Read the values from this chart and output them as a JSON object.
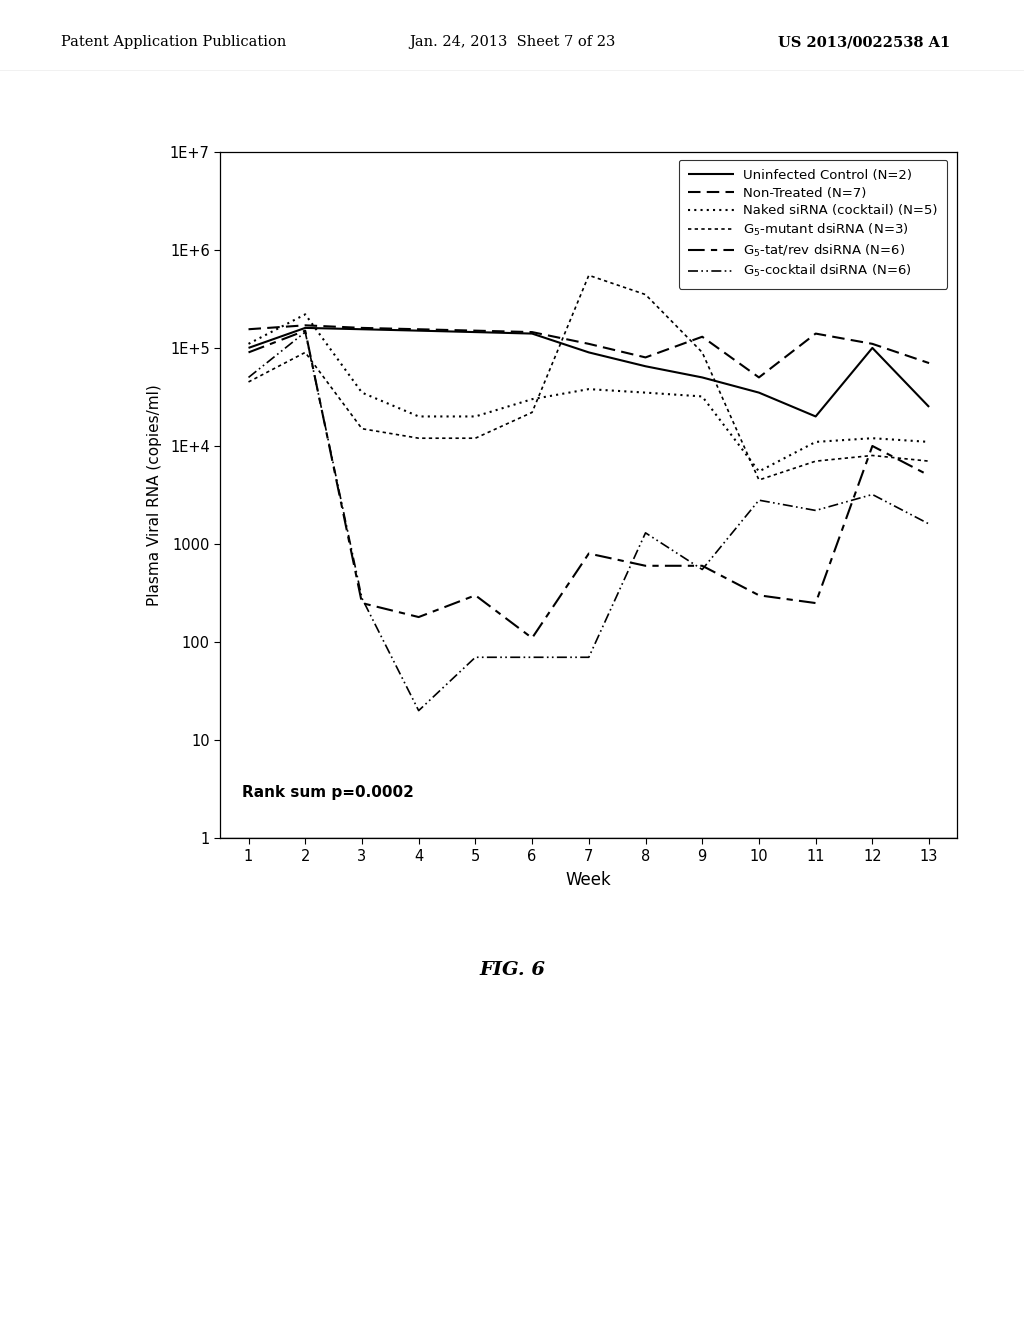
{
  "weeks": [
    1,
    2,
    3,
    4,
    5,
    6,
    7,
    8,
    9,
    10,
    11,
    12,
    13
  ],
  "series": {
    "uninfected": {
      "label": "Uninfected Control (N=2)",
      "values": [
        100000.0,
        160000.0,
        155000.0,
        150000.0,
        145000.0,
        140000.0,
        90000.0,
        65000.0,
        50000.0,
        35000.0,
        20000.0,
        100000.0,
        25000.0
      ]
    },
    "non_treated": {
      "label": "Non-Treated (N=7)",
      "values": [
        155000.0,
        170000.0,
        160000.0,
        155000.0,
        150000.0,
        145000.0,
        110000.0,
        80000.0,
        130000.0,
        50000.0,
        140000.0,
        110000.0,
        70000.0
      ]
    },
    "naked_sirna": {
      "label": "Naked siRNA (cocktail) (N=5)",
      "values": [
        110000.0,
        220000.0,
        35000.0,
        20000.0,
        20000.0,
        30000.0,
        38000.0,
        35000.0,
        32000.0,
        5500.0,
        11000.0,
        12000.0,
        11000.0
      ]
    },
    "g5_mutant": {
      "label": "G$_5$-mutant dsiRNA (N=3)",
      "values": [
        45000.0,
        90000.0,
        15000.0,
        12000.0,
        12000.0,
        22000.0,
        550000.0,
        350000.0,
        90000.0,
        4500.0,
        7000.0,
        8000.0,
        7000.0
      ]
    },
    "g5_tatrev": {
      "label": "G$_5$-tat/rev dsiRNA (N=6)",
      "values": [
        90000.0,
        150000.0,
        250.0,
        180.0,
        300.0,
        110.0,
        800.0,
        600.0,
        600.0,
        300.0,
        250.0,
        10000.0,
        5000.0
      ]
    },
    "g5_cocktail": {
      "label": "G$_5$-cocktail dsiRNA (N=6)",
      "values": [
        50000.0,
        145000.0,
        280.0,
        20.0,
        70.0,
        70.0,
        70.0,
        1300.0,
        550.0,
        2800.0,
        2200.0,
        3200.0,
        1600.0
      ]
    }
  },
  "ytick_vals": [
    1,
    10,
    100,
    1000,
    10000,
    100000,
    1000000,
    10000000
  ],
  "ytick_labels": [
    "1",
    "10",
    "100",
    "1000",
    "1E+4",
    "1E+5",
    "1E+6",
    "1E+7"
  ],
  "ylim": [
    1,
    10000000.0
  ],
  "xlim": [
    0.5,
    13.5
  ],
  "xlabel": "Week",
  "ylabel": "Plasma Viral RNA (copies/ml)",
  "annotation": "Rank sum p=0.0002",
  "fig_label": "FIG. 6",
  "header_left": "Patent Application Publication",
  "header_mid": "Jan. 24, 2013  Sheet 7 of 23",
  "header_right": "US 2013/0022538 A1"
}
